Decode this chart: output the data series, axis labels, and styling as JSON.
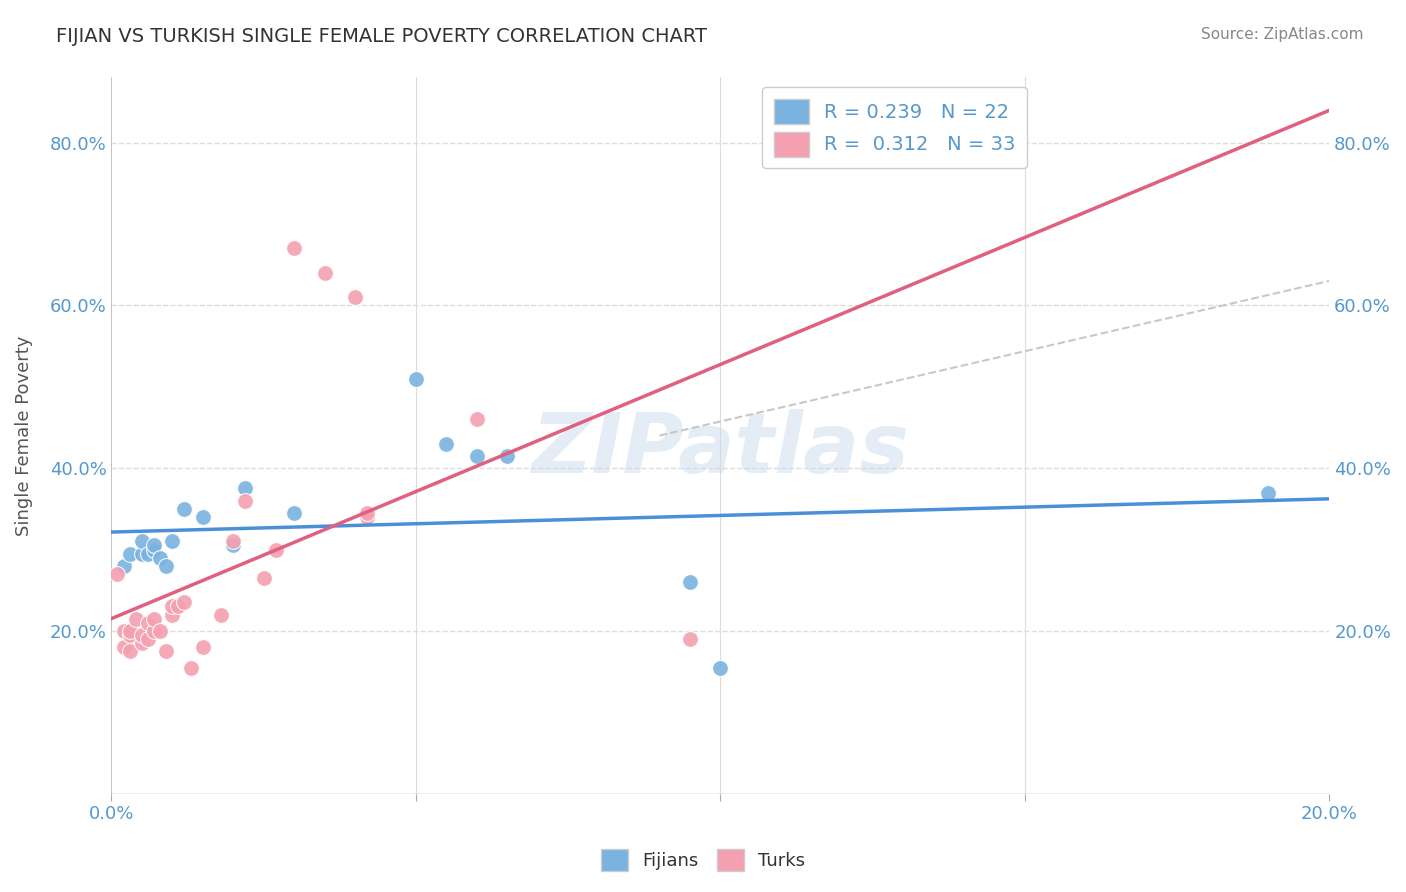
{
  "title": "FIJIAN VS TURKISH SINGLE FEMALE POVERTY CORRELATION CHART",
  "source": "Source: ZipAtlas.com",
  "ylabel_label": "Single Female Poverty",
  "xlim": [
    0.0,
    0.2
  ],
  "ylim": [
    0.0,
    0.88
  ],
  "yticks": [
    0.2,
    0.4,
    0.6,
    0.8
  ],
  "ytick_labels": [
    "20.0%",
    "40.0%",
    "60.0%",
    "80.0%"
  ],
  "xticks": [
    0.0,
    0.05,
    0.1,
    0.15,
    0.2
  ],
  "xtick_labels": [
    "0.0%",
    "",
    "",
    "",
    "20.0%"
  ],
  "fijian_color": "#7ab3e0",
  "turkish_color": "#f4a0b0",
  "fijian_line_color": "#4a90d9",
  "turkish_line_color": "#e06080",
  "fijian_R": "0.239",
  "fijian_N": "22",
  "turkish_R": "0.312",
  "turkish_N": "33",
  "legend_label_fijian": "Fijians",
  "legend_label_turkish": "Turks",
  "fijian_scatter_x": [
    0.002,
    0.003,
    0.005,
    0.005,
    0.006,
    0.007,
    0.007,
    0.008,
    0.009,
    0.01,
    0.012,
    0.015,
    0.02,
    0.022,
    0.03,
    0.05,
    0.055,
    0.06,
    0.065,
    0.095,
    0.1,
    0.19
  ],
  "fijian_scatter_y": [
    0.28,
    0.295,
    0.295,
    0.31,
    0.295,
    0.3,
    0.305,
    0.29,
    0.28,
    0.31,
    0.35,
    0.34,
    0.305,
    0.375,
    0.345,
    0.51,
    0.43,
    0.415,
    0.415,
    0.26,
    0.155,
    0.37
  ],
  "turkish_scatter_x": [
    0.001,
    0.002,
    0.002,
    0.003,
    0.003,
    0.003,
    0.004,
    0.005,
    0.005,
    0.006,
    0.006,
    0.007,
    0.007,
    0.008,
    0.009,
    0.01,
    0.01,
    0.011,
    0.012,
    0.013,
    0.015,
    0.018,
    0.02,
    0.022,
    0.025,
    0.027,
    0.03,
    0.035,
    0.04,
    0.042,
    0.042,
    0.06,
    0.095
  ],
  "turkish_scatter_y": [
    0.27,
    0.18,
    0.2,
    0.175,
    0.195,
    0.2,
    0.215,
    0.185,
    0.195,
    0.19,
    0.21,
    0.2,
    0.215,
    0.2,
    0.175,
    0.22,
    0.23,
    0.23,
    0.235,
    0.155,
    0.18,
    0.22,
    0.31,
    0.36,
    0.265,
    0.3,
    0.67,
    0.64,
    0.61,
    0.34,
    0.345,
    0.46,
    0.19
  ],
  "watermark": "ZIPatlas",
  "background_color": "#ffffff",
  "grid_color": "#dddddd",
  "title_color": "#333333",
  "axis_label_color": "#5599cc",
  "ylabel_color": "#555555"
}
